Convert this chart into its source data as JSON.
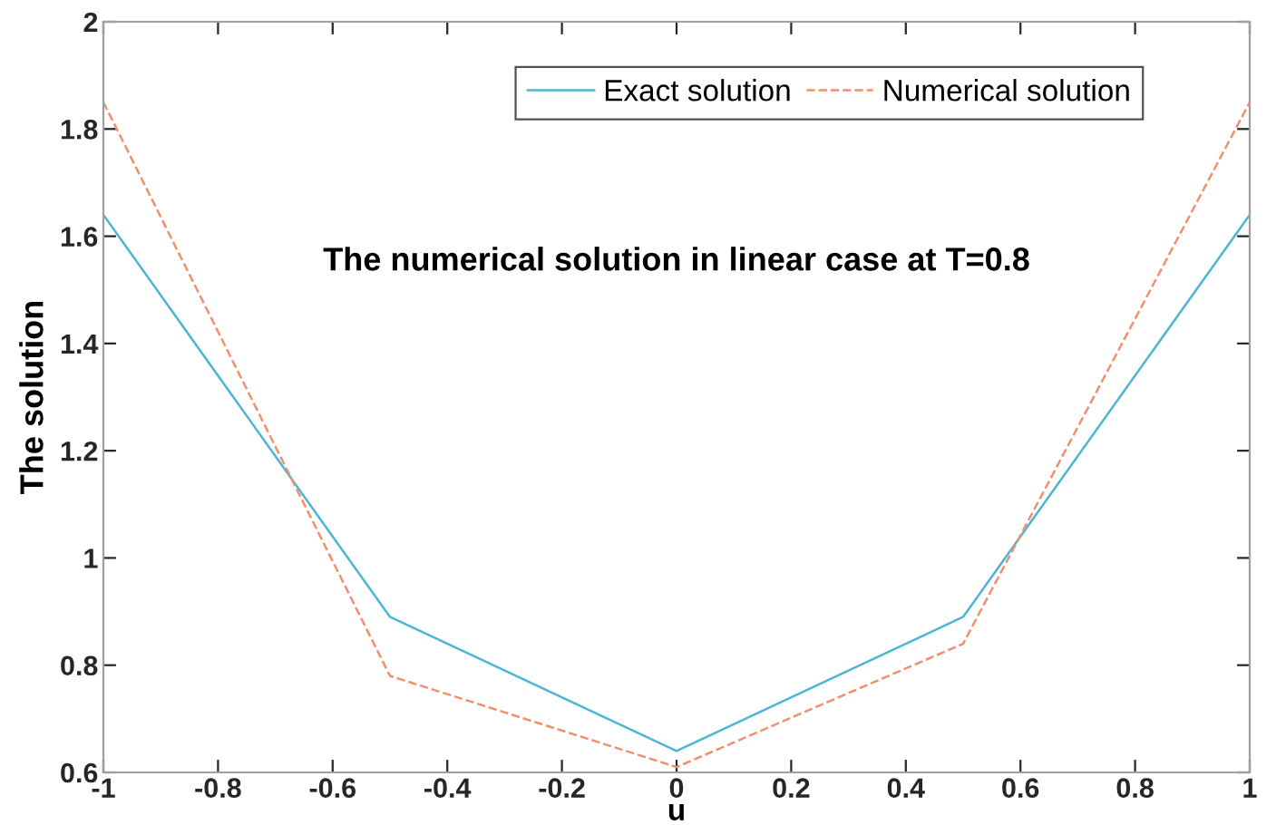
{
  "chart_data": {
    "type": "line",
    "title": "The numerical solution in linear case at T=0.8",
    "xlabel": "u",
    "ylabel": "The solution",
    "x": [
      -1,
      -0.5,
      0,
      0.5,
      1
    ],
    "series": [
      {
        "name": "Exact solution",
        "color": "#4db6d6",
        "values": [
          1.64,
          0.89,
          0.64,
          0.89,
          1.64
        ],
        "line_style": "solid"
      },
      {
        "name": "Numerical solution",
        "color": "#f0906c",
        "values": [
          1.85,
          0.78,
          0.61,
          0.84,
          1.85
        ],
        "line_style": "dashed"
      }
    ],
    "xlim": [
      -1,
      1
    ],
    "xticks": [
      -1,
      -0.8,
      -0.6,
      -0.4,
      -0.2,
      0,
      0.2,
      0.4,
      0.6,
      0.8,
      1
    ],
    "ylim": [
      0.6,
      2
    ],
    "yticks": [
      0.6,
      0.8,
      1,
      1.2,
      1.4,
      1.6,
      1.8,
      2
    ],
    "grid": false,
    "legend": "top right",
    "marker": "none"
  }
}
